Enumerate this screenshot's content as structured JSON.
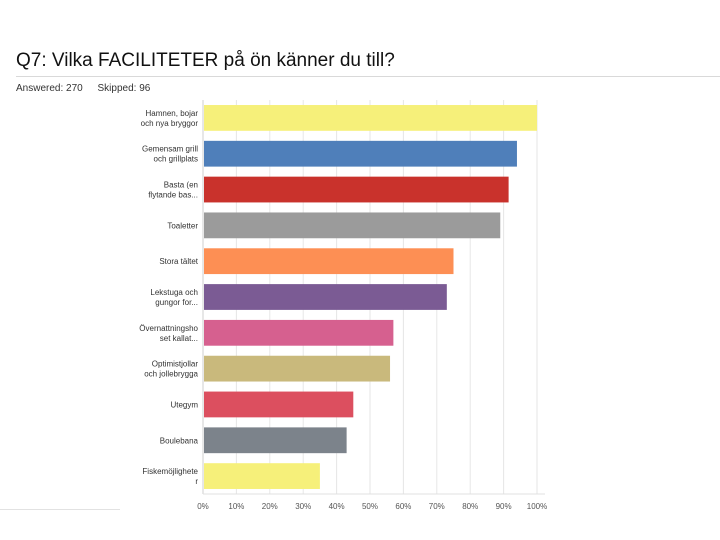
{
  "header": {
    "title": "Q7: Vilka FACILITETER på ön känner du till?",
    "answered": "Answered: 270",
    "skipped": "Skipped: 96"
  },
  "chart_data": {
    "type": "bar",
    "orientation": "horizontal",
    "categories": [
      [
        "Hamnen, bojar",
        "och nya bryggor"
      ],
      [
        "Gemensam grill",
        "och grillplats"
      ],
      [
        "Basta (en",
        "flytande bas..."
      ],
      [
        "Toaletter"
      ],
      [
        "Stora tältet"
      ],
      [
        "Lekstuga och",
        "gungor for..."
      ],
      [
        "Övernattningsho",
        "set kallat..."
      ],
      [
        "Optimistjollar",
        "och jollebrygga"
      ],
      [
        "Utegym"
      ],
      [
        "Boulebana"
      ],
      [
        "Fiskemöjlighete",
        "r"
      ]
    ],
    "values": [
      100,
      94,
      91.5,
      89,
      75,
      73,
      57,
      56,
      45,
      43,
      35
    ],
    "colors": [
      "#f6f07a",
      "#4f7fba",
      "#c9322c",
      "#9b9b9b",
      "#fd8f54",
      "#7b5b94",
      "#d6608f",
      "#c9b97c",
      "#dc4f5f",
      "#7c838b",
      "#f6f07a"
    ],
    "xticks": [
      "0%",
      "10%",
      "20%",
      "30%",
      "40%",
      "50%",
      "60%",
      "70%",
      "80%",
      "90%",
      "100%"
    ],
    "xlim": [
      0,
      100
    ],
    "grid": true
  }
}
